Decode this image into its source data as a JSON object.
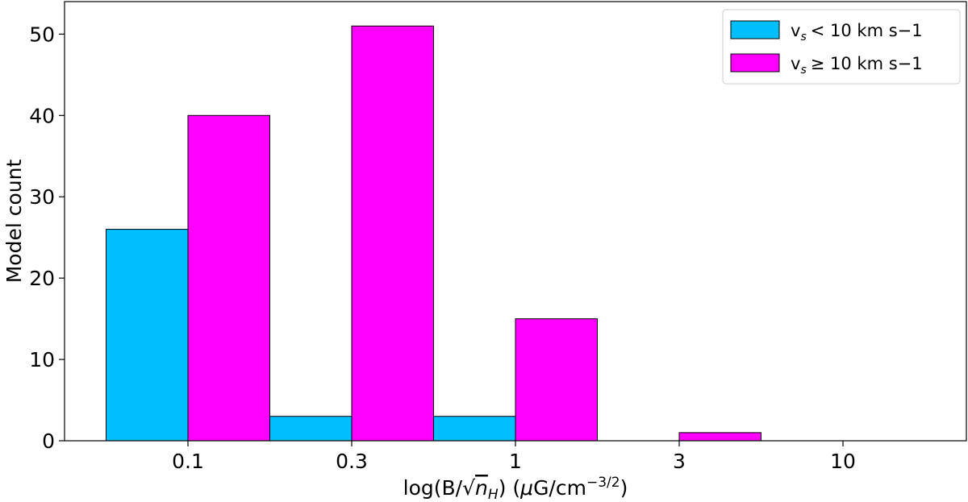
{
  "chart_data": {
    "type": "bar",
    "categories": [
      "0.1",
      "0.3",
      "1",
      "3",
      "10"
    ],
    "xlabel": "log(B/√n_H) (μG/cm^−3/2)",
    "xlabel_parts": {
      "prefix": "log(B/",
      "sqrt": "√",
      "radicand": "n",
      "radicand_sub": "H",
      "middle": ") (",
      "mu": "μ",
      "unit": "G/cm",
      "exponent": "−3/2",
      "suffix": ")"
    },
    "ylabel": "Model count",
    "ylim": [
      0,
      54
    ],
    "yticks": [
      0,
      10,
      20,
      30,
      40,
      50
    ],
    "grid": false,
    "legend_position": "top-right",
    "series": [
      {
        "name": "v_s < 10 km s−1",
        "label_parts": {
          "v": "v",
          "sub": "s",
          "rest": "<  10 km s−1"
        },
        "color": "#00bfff",
        "values": [
          26,
          3,
          3,
          0,
          0
        ]
      },
      {
        "name": "v_s ≥ 10 km s−1",
        "label_parts": {
          "v": "v",
          "sub": "s",
          "rest": "≥  10 km s−1"
        },
        "color": "#ff00ff",
        "values": [
          40,
          51,
          15,
          1,
          0
        ]
      }
    ]
  }
}
